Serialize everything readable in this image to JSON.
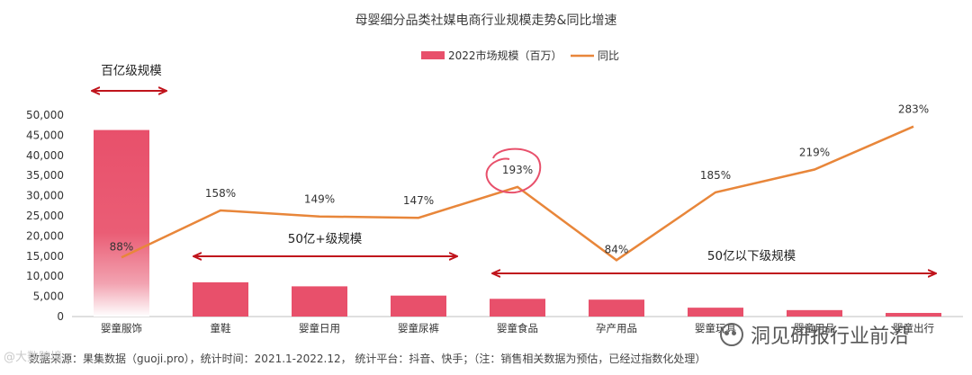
{
  "chart_data": {
    "type": "bar",
    "title": "母婴细分品类社媒电商行业规模走势&同比增速",
    "categories": [
      "婴童服饰",
      "童鞋",
      "婴童日用",
      "婴童尿裤",
      "婴童食品",
      "孕产用品",
      "婴童玩具",
      "婴童用品",
      "婴童出行"
    ],
    "series": [
      {
        "name": "2022市场规模（百万）",
        "type": "bar",
        "values": [
          46300,
          8500,
          7500,
          5200,
          4400,
          4200,
          2200,
          1600,
          900
        ]
      },
      {
        "name": "同比",
        "type": "line",
        "values": [
          88,
          158,
          149,
          147,
          193,
          84,
          185,
          219,
          283
        ],
        "labels": [
          "88%",
          "158%",
          "149%",
          "147%",
          "193%",
          "84%",
          "185%",
          "219%",
          "283%"
        ]
      }
    ],
    "ylim": [
      0,
      50000
    ],
    "yticks": [
      "0",
      "5,000",
      "10,000",
      "15,000",
      "20,000",
      "25,000",
      "30,000",
      "35,000",
      "40,000",
      "45,000",
      "50,000"
    ],
    "y2lim": [
      0,
      300
    ],
    "legend_position": "top-center",
    "grid": false,
    "annotations": [
      "百亿级规模",
      "50亿+级规模",
      "50亿以下级规模"
    ],
    "colors": {
      "bar": "#e8506b",
      "line": "#e8863a",
      "arrow": "#c0141c",
      "circle": "#e8506b"
    }
  },
  "footer": {
    "source": "数据来源：果集数据（guoji.pro），统计时间：2021.1-2022.12，  统计平台：抖音、快手；（注：销售相关数据为预估，已经过指数化处理）",
    "watermark": "洞见研报行业前沿",
    "watermark_left": "@大数跨境"
  }
}
